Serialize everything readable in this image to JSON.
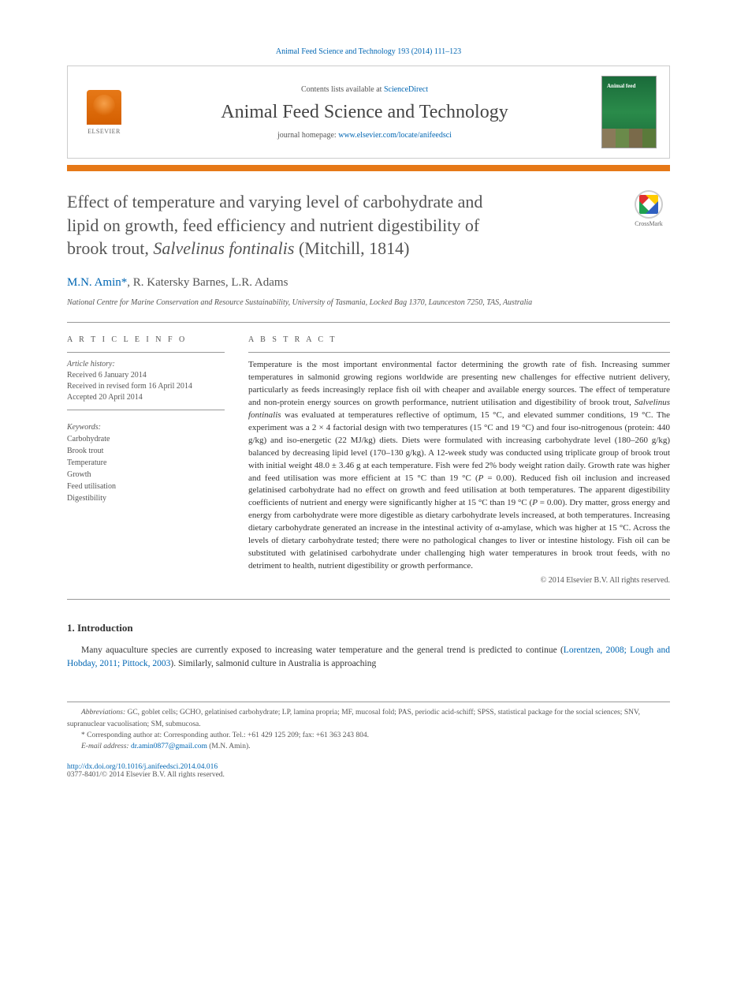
{
  "citation": "Animal Feed Science and Technology 193 (2014) 111–123",
  "header": {
    "contents_prefix": "Contents lists available at ",
    "contents_link": "ScienceDirect",
    "journal_name": "Animal Feed Science and Technology",
    "homepage_prefix": "journal homepage: ",
    "homepage_url": "www.elsevier.com/locate/anifeedsci",
    "publisher": "ELSEVIER"
  },
  "title": {
    "line1": "Effect of temperature and varying level of carbohydrate and",
    "line2": "lipid on growth, feed efficiency and nutrient digestibility of",
    "line3_pre": "brook trout, ",
    "line3_em": "Salvelinus fontinalis",
    "line3_post": " (Mitchill, 1814)"
  },
  "crossmark_label": "CrossMark",
  "authors": {
    "a1": "M.N. Amin",
    "corr_mark": "*",
    "a2": ", R. Katersky Barnes, L.R. Adams"
  },
  "affiliation": "National Centre for Marine Conservation and Resource Sustainability, University of Tasmania, Locked Bag 1370, Launceston 7250, TAS, Australia",
  "article_info_head": "A R T I C L E   I N F O",
  "abstract_head": "A B S T R A C T",
  "history": {
    "label": "Article history:",
    "received": "Received 6 January 2014",
    "revised": "Received in revised form 16 April 2014",
    "accepted": "Accepted 20 April 2014"
  },
  "keywords": {
    "label": "Keywords:",
    "items": [
      "Carbohydrate",
      "Brook trout",
      "Temperature",
      "Growth",
      "Feed utilisation",
      "Digestibility"
    ]
  },
  "abstract": "Temperature is the most important environmental factor determining the growth rate of fish. Increasing summer temperatures in salmonid growing regions worldwide are presenting new challenges for effective nutrient delivery, particularly as feeds increasingly replace fish oil with cheaper and available energy sources. The effect of temperature and non-protein energy sources on growth performance, nutrient utilisation and digestibility of brook trout, <em>Salvelinus fontinalis</em> was evaluated at temperatures reflective of optimum, 15 °C, and elevated summer conditions, 19 °C. The experiment was a 2 × 4 factorial design with two temperatures (15 °C and 19 °C) and four iso-nitrogenous (protein: 440 g/kg) and iso-energetic (22 MJ/kg) diets. Diets were formulated with increasing carbohydrate level (180–260 g/kg) balanced by decreasing lipid level (170–130 g/kg). A 12-week study was conducted using triplicate group of brook trout with initial weight 48.0 ± 3.46 g at each temperature. Fish were fed 2% body weight ration daily. Growth rate was higher and feed utilisation was more efficient at 15 °C than 19 °C (<em>P</em> = 0.00). Reduced fish oil inclusion and increased gelatinised carbohydrate had no effect on growth and feed utilisation at both temperatures. The apparent digestibility coefficients of nutrient and energy were significantly higher at 15 °C than 19 °C (<em>P</em> = 0.00). Dry matter, gross energy and energy from carbohydrate were more digestible as dietary carbohydrate levels increased, at both temperatures. Increasing dietary carbohydrate generated an increase in the intestinal activity of α-amylase, which was higher at 15 °C. Across the levels of dietary carbohydrate tested; there were no pathological changes to liver or intestine histology. Fish oil can be substituted with gelatinised carbohydrate under challenging high water temperatures in brook trout feeds, with no detriment to health, nutrient digestibility or growth performance.",
  "copyright": "© 2014 Elsevier B.V. All rights reserved.",
  "intro": {
    "heading": "1.  Introduction",
    "para_pre": "Many aquaculture species are currently exposed to increasing water temperature and the general trend is predicted to continue (",
    "para_link": "Lorentzen, 2008; Lough and Hobday, 2011; Pittock, 2003",
    "para_post": "). Similarly, salmonid culture in Australia is approaching"
  },
  "footnotes": {
    "abbr_label": "Abbreviations:",
    "abbr_text": " GC, goblet cells; GCHO, gelatinised carbohydrate; LP, lamina propria; MF, mucosal fold; PAS, periodic acid-schiff; SPSS, statistical package for the social sciences; SNV, supranuclear vacuolisation; SM, submucosa.",
    "corr_text": "* Corresponding author at: Corresponding author. Tel.: +61 429 125 209; fax: +61 363 243 804.",
    "email_label": "E-mail address:",
    "email": "dr.amin0877@gmail.com",
    "email_who": " (M.N. Amin)."
  },
  "doi": "http://dx.doi.org/10.1016/j.anifeedsci.2014.04.016",
  "issn": "0377-8401/© 2014 Elsevier B.V. All rights reserved.",
  "colors": {
    "link": "#0066b3",
    "accent": "#e67817",
    "text": "#333333",
    "muted": "#555555"
  }
}
